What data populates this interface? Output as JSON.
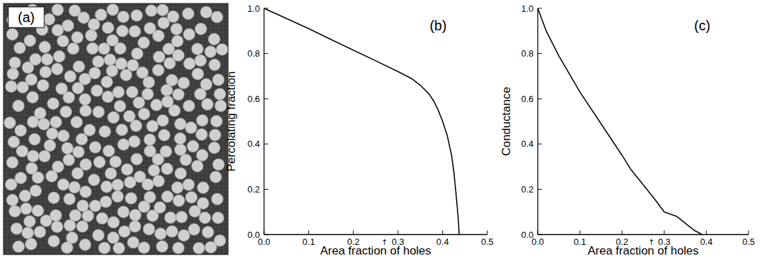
{
  "image": {
    "label": "(a)"
  },
  "chart_data": [
    {
      "type": "line",
      "annotations": [
        {
          "text": "(b)"
        },
        {
          "text": "↑",
          "x": 0.27
        }
      ],
      "x_label": "Area fraction of holes",
      "y_label": "Percolating fraction",
      "x": [
        0.0,
        0.05,
        0.1,
        0.15,
        0.2,
        0.25,
        0.3,
        0.33,
        0.35,
        0.37,
        0.38,
        0.39,
        0.4,
        0.41,
        0.42,
        0.425,
        0.43,
        0.435,
        0.437
      ],
      "values": [
        1.0,
        0.955,
        0.91,
        0.862,
        0.815,
        0.768,
        0.72,
        0.69,
        0.66,
        0.62,
        0.59,
        0.55,
        0.5,
        0.44,
        0.35,
        0.28,
        0.18,
        0.07,
        0.0
      ],
      "color": "#000000",
      "xlim": [
        0,
        0.5
      ],
      "ylim": [
        0,
        1.0
      ],
      "xticks": [
        {
          "value": 0,
          "label": "0.0"
        },
        {
          "value": 0.1,
          "label": "0.1"
        },
        {
          "value": 0.2,
          "label": "0.2"
        },
        {
          "value": 0.3,
          "label": "0.3"
        },
        {
          "value": 0.4,
          "label": "0.4"
        },
        {
          "value": 0.5,
          "label": "0.5"
        }
      ],
      "yticks": [
        {
          "value": 0,
          "label": "0.0"
        },
        {
          "value": 0.2,
          "label": "0.2"
        },
        {
          "value": 0.4,
          "label": "0.4"
        },
        {
          "value": 0.6,
          "label": "0.6"
        },
        {
          "value": 0.8,
          "label": "0.8"
        },
        {
          "value": 1.0,
          "label": "1.0"
        }
      ],
      "grid": false
    },
    {
      "type": "line",
      "annotations": [
        {
          "text": "(c)"
        },
        {
          "text": "↑",
          "x": 0.27
        }
      ],
      "x_label": "Area fraction of holes",
      "y_label": "Conductance",
      "x": [
        0.0,
        0.02,
        0.05,
        0.1,
        0.15,
        0.2,
        0.22,
        0.25,
        0.28,
        0.3,
        0.33,
        0.35,
        0.37,
        0.38,
        0.39
      ],
      "values": [
        1.0,
        0.9,
        0.79,
        0.63,
        0.49,
        0.35,
        0.29,
        0.22,
        0.15,
        0.1,
        0.08,
        0.05,
        0.02,
        0.01,
        0.0
      ],
      "color": "#000000",
      "xlim": [
        0,
        0.5
      ],
      "ylim": [
        0,
        1.0
      ],
      "xticks": [
        {
          "value": 0,
          "label": "0.0"
        },
        {
          "value": 0.1,
          "label": "0.1"
        },
        {
          "value": 0.2,
          "label": "0.2"
        },
        {
          "value": 0.3,
          "label": "0.3"
        },
        {
          "value": 0.4,
          "label": "0.4"
        },
        {
          "value": 0.5,
          "label": "0.5"
        }
      ],
      "yticks": [
        {
          "value": 0,
          "label": "0.0"
        },
        {
          "value": 0.2,
          "label": "0.2"
        },
        {
          "value": 0.4,
          "label": "0.4"
        },
        {
          "value": 0.6,
          "label": "0.6"
        },
        {
          "value": 0.8,
          "label": "0.8"
        },
        {
          "value": 1.0,
          "label": "1.0"
        }
      ],
      "grid": false
    }
  ]
}
